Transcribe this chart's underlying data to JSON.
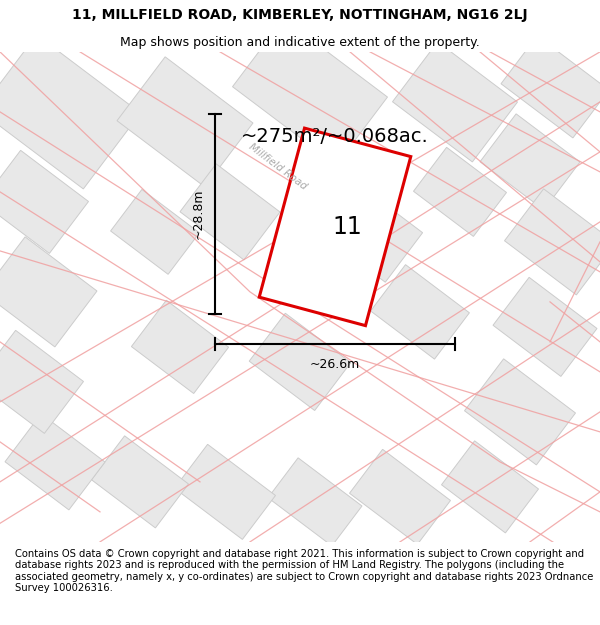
{
  "title_line1": "11, MILLFIELD ROAD, KIMBERLEY, NOTTINGHAM, NG16 2LJ",
  "title_line2": "Map shows position and indicative extent of the property.",
  "area_label": "~275m²/~0.068ac.",
  "height_label": "~28.8m",
  "width_label": "~26.6m",
  "plot_number": "11",
  "road_label": "Millfield Road",
  "footer_text": "Contains OS data © Crown copyright and database right 2021. This information is subject to Crown copyright and database rights 2023 and is reproduced with the permission of HM Land Registry. The polygons (including the associated geometry, namely x, y co-ordinates) are subject to Crown copyright and database rights 2023 Ordnance Survey 100026316.",
  "bg_color": "#ffffff",
  "map_bg": "#ffffff",
  "plot_color": "#dd0000",
  "polygon_fill": "#e8e8e8",
  "polygon_edge": "#cccccc",
  "road_line_color": "#f0a0a0",
  "title_fontsize": 10,
  "subtitle_fontsize": 9,
  "footer_fontsize": 7.2
}
